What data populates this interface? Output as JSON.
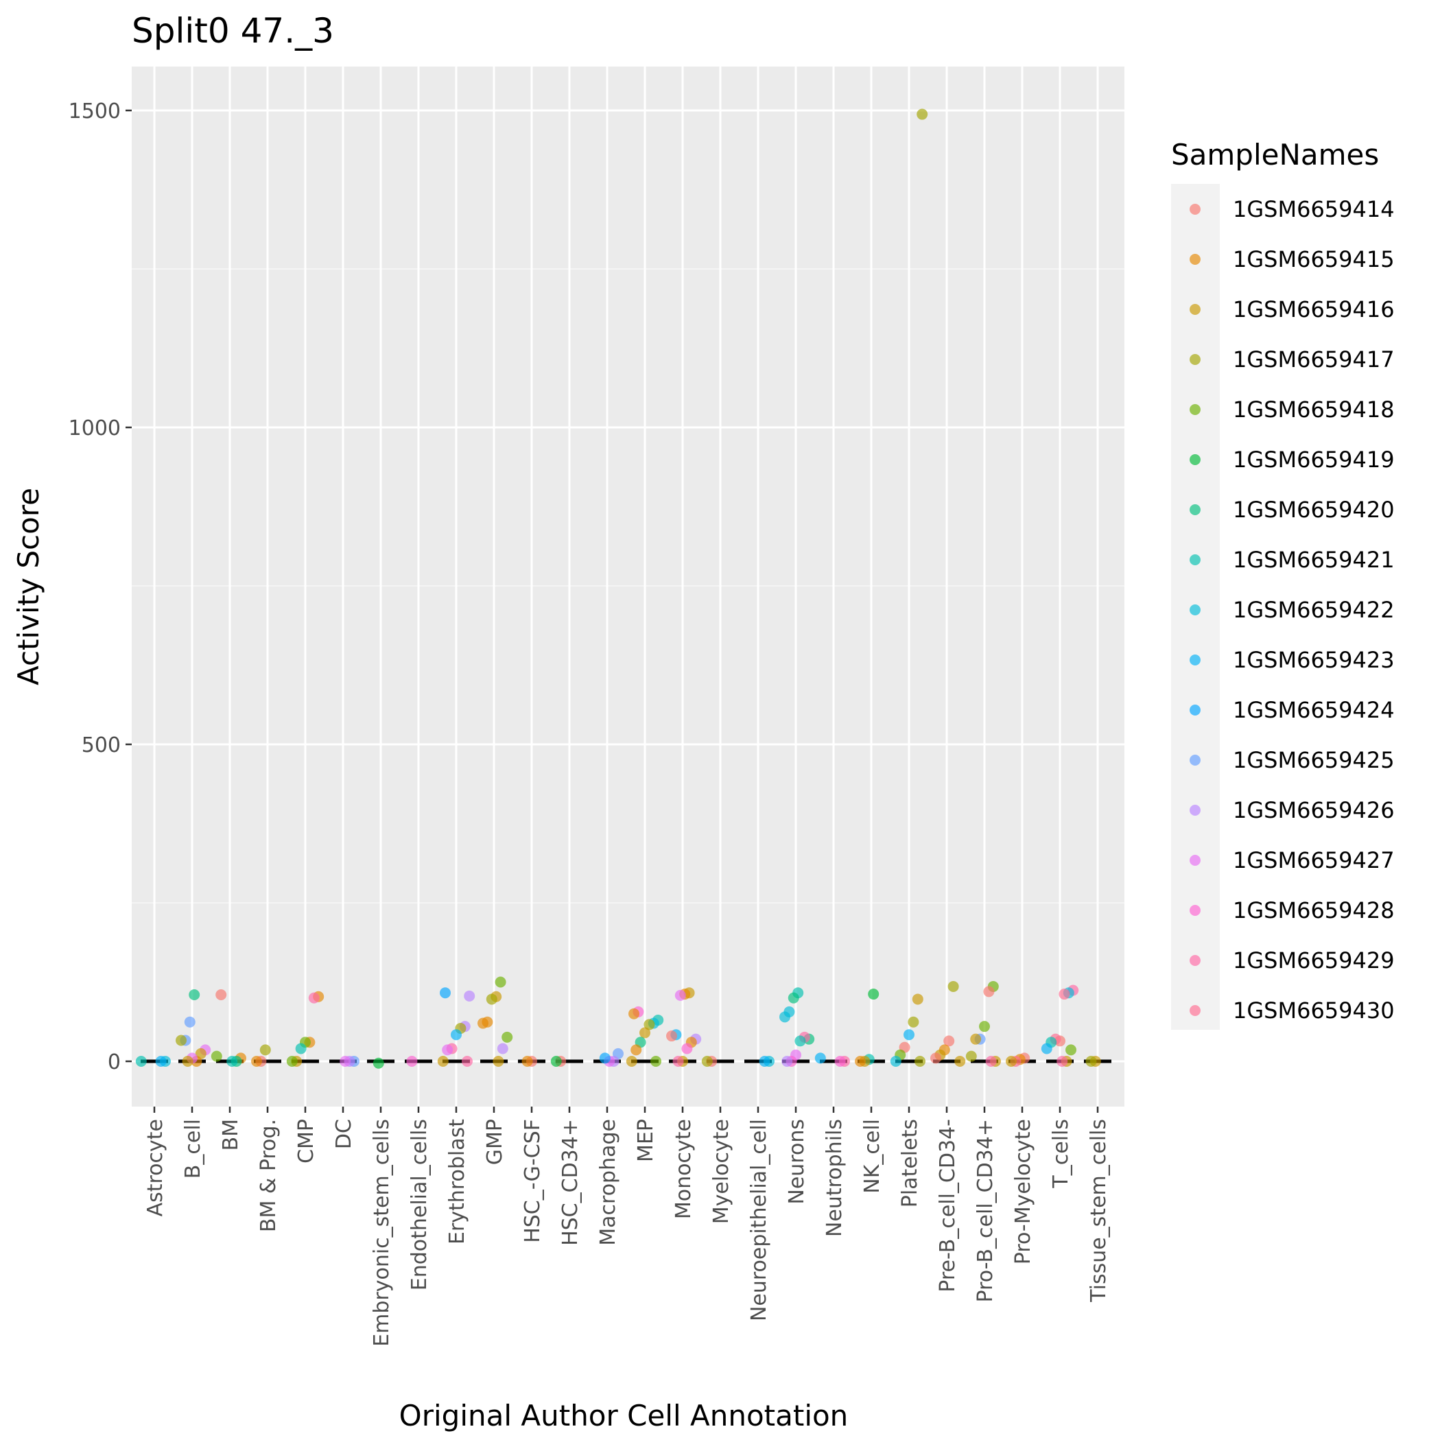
{
  "chart_data": {
    "type": "scatter",
    "title": "Split0 47._3",
    "xlabel": "Original Author Cell Annotation",
    "ylabel": "Activity Score",
    "ylim": [
      -75,
      1505
    ],
    "yticks": [
      0,
      500,
      1000,
      1500
    ],
    "grid": true,
    "legend_title": "SampleNames",
    "legend_position": "right",
    "categories": [
      "Astrocyte",
      "B_cell",
      "BM",
      "BM & Prog.",
      "CMP",
      "DC",
      "Embryonic_stem_cells",
      "Endothelial_cells",
      "Erythroblast",
      "GMP",
      "HSC_-G-CSF",
      "HSC_CD34+",
      "Macrophage",
      "MEP",
      "Monocyte",
      "Myelocyte",
      "Neuroepithelial_cell",
      "Neurons",
      "Neutrophils",
      "NK_cell",
      "Platelets",
      "Pre-B_cell_CD34-",
      "Pro-B_cell_CD34+",
      "Pro-Myelocyte",
      "T_cells",
      "Tissue_stem_cells"
    ],
    "series_names": [
      "1GSM6659414",
      "1GSM6659415",
      "1GSM6659416",
      "1GSM6659417",
      "1GSM6659418",
      "1GSM6659419",
      "1GSM6659420",
      "1GSM6659421",
      "1GSM6659422",
      "1GSM6659423",
      "1GSM6659424",
      "1GSM6659425",
      "1GSM6659426",
      "1GSM6659427",
      "1GSM6659428",
      "1GSM6659429",
      "1GSM6659430"
    ],
    "series_colors": [
      "#F8766D",
      "#E58700",
      "#C99800",
      "#A3A500",
      "#6BB100",
      "#00BA38",
      "#00BF7D",
      "#00C0AF",
      "#00BCD8",
      "#00B0F6",
      "#00A5FF",
      "#619CFF",
      "#B983FF",
      "#E76BF3",
      "#FD61D1",
      "#FF67A4",
      "#FF6C91"
    ],
    "points": [
      {
        "c": "Astrocyte",
        "s": 7,
        "y": 0
      },
      {
        "c": "Astrocyte",
        "s": 8,
        "y": 0
      },
      {
        "c": "Astrocyte",
        "s": 9,
        "y": 0
      },
      {
        "c": "B_cell",
        "s": 6,
        "y": 105
      },
      {
        "c": "B_cell",
        "s": 11,
        "y": 62
      },
      {
        "c": "B_cell",
        "s": 11,
        "y": 33
      },
      {
        "c": "B_cell",
        "s": 3,
        "y": 33
      },
      {
        "c": "B_cell",
        "s": 13,
        "y": 18
      },
      {
        "c": "B_cell",
        "s": 2,
        "y": 12
      },
      {
        "c": "B_cell",
        "s": 1,
        "y": 0
      },
      {
        "c": "B_cell",
        "s": 13,
        "y": 5
      },
      {
        "c": "B_cell",
        "s": 2,
        "y": 0
      },
      {
        "c": "BM",
        "s": 0,
        "y": 105
      },
      {
        "c": "BM",
        "s": 4,
        "y": 8
      },
      {
        "c": "BM",
        "s": 1,
        "y": 5
      },
      {
        "c": "BM",
        "s": 6,
        "y": 0
      },
      {
        "c": "BM",
        "s": 7,
        "y": 0
      },
      {
        "c": "BM & Prog.",
        "s": 3,
        "y": 18
      },
      {
        "c": "BM & Prog.",
        "s": 0,
        "y": 0
      },
      {
        "c": "BM & Prog.",
        "s": 1,
        "y": 0
      },
      {
        "c": "CMP",
        "s": 1,
        "y": 102
      },
      {
        "c": "CMP",
        "s": 15,
        "y": 100
      },
      {
        "c": "CMP",
        "s": 1,
        "y": 30
      },
      {
        "c": "CMP",
        "s": 4,
        "y": 30
      },
      {
        "c": "CMP",
        "s": 7,
        "y": 20
      },
      {
        "c": "CMP",
        "s": 2,
        "y": 0
      },
      {
        "c": "CMP",
        "s": 4,
        "y": 0
      },
      {
        "c": "DC",
        "s": 11,
        "y": 0
      },
      {
        "c": "DC",
        "s": 12,
        "y": 0
      },
      {
        "c": "DC",
        "s": 13,
        "y": 0
      },
      {
        "c": "Embryonic_stem_cells",
        "s": 5,
        "y": -3
      },
      {
        "c": "Endothelial_cells",
        "s": 14,
        "y": 0
      },
      {
        "c": "Erythroblast",
        "s": 10,
        "y": 108
      },
      {
        "c": "Erythroblast",
        "s": 12,
        "y": 103
      },
      {
        "c": "Erythroblast",
        "s": 12,
        "y": 55
      },
      {
        "c": "Erythroblast",
        "s": 3,
        "y": 52
      },
      {
        "c": "Erythroblast",
        "s": 9,
        "y": 42
      },
      {
        "c": "Erythroblast",
        "s": 15,
        "y": 20
      },
      {
        "c": "Erythroblast",
        "s": 13,
        "y": 18
      },
      {
        "c": "Erythroblast",
        "s": 2,
        "y": 0
      },
      {
        "c": "Erythroblast",
        "s": 15,
        "y": 0
      },
      {
        "c": "GMP",
        "s": 4,
        "y": 125
      },
      {
        "c": "GMP",
        "s": 2,
        "y": 102
      },
      {
        "c": "GMP",
        "s": 3,
        "y": 98
      },
      {
        "c": "GMP",
        "s": 1,
        "y": 62
      },
      {
        "c": "GMP",
        "s": 1,
        "y": 60
      },
      {
        "c": "GMP",
        "s": 4,
        "y": 38
      },
      {
        "c": "GMP",
        "s": 12,
        "y": 20
      },
      {
        "c": "GMP",
        "s": 2,
        "y": 0
      },
      {
        "c": "HSC_-G-CSF",
        "s": 0,
        "y": 0
      },
      {
        "c": "HSC_-G-CSF",
        "s": 1,
        "y": 0
      },
      {
        "c": "HSC_CD34+",
        "s": 0,
        "y": 0
      },
      {
        "c": "HSC_CD34+",
        "s": 5,
        "y": 0
      },
      {
        "c": "Macrophage",
        "s": 11,
        "y": 12
      },
      {
        "c": "Macrophage",
        "s": 12,
        "y": 0
      },
      {
        "c": "Macrophage",
        "s": 13,
        "y": 0
      },
      {
        "c": "Macrophage",
        "s": 10,
        "y": 5
      },
      {
        "c": "MEP",
        "s": 14,
        "y": 78
      },
      {
        "c": "MEP",
        "s": 1,
        "y": 75
      },
      {
        "c": "MEP",
        "s": 7,
        "y": 65
      },
      {
        "c": "MEP",
        "s": 8,
        "y": 60
      },
      {
        "c": "MEP",
        "s": 3,
        "y": 58
      },
      {
        "c": "MEP",
        "s": 2,
        "y": 45
      },
      {
        "c": "MEP",
        "s": 6,
        "y": 30
      },
      {
        "c": "MEP",
        "s": 1,
        "y": 18
      },
      {
        "c": "MEP",
        "s": 2,
        "y": 0
      },
      {
        "c": "MEP",
        "s": 4,
        "y": 0
      },
      {
        "c": "Monocyte",
        "s": 2,
        "y": 108
      },
      {
        "c": "Monocyte",
        "s": 1,
        "y": 106
      },
      {
        "c": "Monocyte",
        "s": 13,
        "y": 104
      },
      {
        "c": "Monocyte",
        "s": 9,
        "y": 42
      },
      {
        "c": "Monocyte",
        "s": 0,
        "y": 40
      },
      {
        "c": "Monocyte",
        "s": 12,
        "y": 35
      },
      {
        "c": "Monocyte",
        "s": 1,
        "y": 30
      },
      {
        "c": "Monocyte",
        "s": 14,
        "y": 20
      },
      {
        "c": "Monocyte",
        "s": 2,
        "y": 0
      },
      {
        "c": "Monocyte",
        "s": 15,
        "y": 0
      },
      {
        "c": "Myelocyte",
        "s": 0,
        "y": 0
      },
      {
        "c": "Myelocyte",
        "s": 3,
        "y": 0
      },
      {
        "c": "Neuroepithelial_cell",
        "s": 8,
        "y": 0
      },
      {
        "c": "Neuroepithelial_cell",
        "s": 9,
        "y": 0
      },
      {
        "c": "Neurons",
        "s": 7,
        "y": 108
      },
      {
        "c": "Neurons",
        "s": 6,
        "y": 100
      },
      {
        "c": "Neurons",
        "s": 8,
        "y": 78
      },
      {
        "c": "Neurons",
        "s": 8,
        "y": 70
      },
      {
        "c": "Neurons",
        "s": 6,
        "y": 35
      },
      {
        "c": "Neurons",
        "s": 15,
        "y": 38
      },
      {
        "c": "Neurons",
        "s": 7,
        "y": 32
      },
      {
        "c": "Neurons",
        "s": 13,
        "y": 10
      },
      {
        "c": "Neurons",
        "s": 14,
        "y": 0
      },
      {
        "c": "Neurons",
        "s": 12,
        "y": 0
      },
      {
        "c": "Neutrophils",
        "s": 9,
        "y": 5
      },
      {
        "c": "Neutrophils",
        "s": 15,
        "y": 0
      },
      {
        "c": "Neutrophils",
        "s": 14,
        "y": 0
      },
      {
        "c": "NK_cell",
        "s": 5,
        "y": 106
      },
      {
        "c": "NK_cell",
        "s": 7,
        "y": 3
      },
      {
        "c": "NK_cell",
        "s": 2,
        "y": 0
      },
      {
        "c": "NK_cell",
        "s": 1,
        "y": 0
      },
      {
        "c": "Platelets",
        "s": 3,
        "y": 1494
      },
      {
        "c": "Platelets",
        "s": 2,
        "y": 98
      },
      {
        "c": "Platelets",
        "s": 3,
        "y": 62
      },
      {
        "c": "Platelets",
        "s": 9,
        "y": 42
      },
      {
        "c": "Platelets",
        "s": 0,
        "y": 22
      },
      {
        "c": "Platelets",
        "s": 4,
        "y": 10
      },
      {
        "c": "Platelets",
        "s": 8,
        "y": 0
      },
      {
        "c": "Platelets",
        "s": 3,
        "y": 0
      },
      {
        "c": "Pre-B_cell_CD34-",
        "s": 3,
        "y": 118
      },
      {
        "c": "Pre-B_cell_CD34-",
        "s": 0,
        "y": 32
      },
      {
        "c": "Pre-B_cell_CD34-",
        "s": 1,
        "y": 18
      },
      {
        "c": "Pre-B_cell_CD34-",
        "s": 2,
        "y": 10
      },
      {
        "c": "Pre-B_cell_CD34-",
        "s": 0,
        "y": 5
      },
      {
        "c": "Pre-B_cell_CD34-",
        "s": 2,
        "y": 0
      },
      {
        "c": "Pro-B_cell_CD34+",
        "s": 4,
        "y": 118
      },
      {
        "c": "Pro-B_cell_CD34+",
        "s": 0,
        "y": 110
      },
      {
        "c": "Pro-B_cell_CD34+",
        "s": 4,
        "y": 55
      },
      {
        "c": "Pro-B_cell_CD34+",
        "s": 11,
        "y": 35
      },
      {
        "c": "Pro-B_cell_CD34+",
        "s": 2,
        "y": 35
      },
      {
        "c": "Pro-B_cell_CD34+",
        "s": 3,
        "y": 8
      },
      {
        "c": "Pro-B_cell_CD34+",
        "s": 2,
        "y": 0
      },
      {
        "c": "Pro-B_cell_CD34+",
        "s": 15,
        "y": 0
      },
      {
        "c": "Pro-Myelocyte",
        "s": 0,
        "y": 5
      },
      {
        "c": "Pro-Myelocyte",
        "s": 1,
        "y": 3
      },
      {
        "c": "Pro-Myelocyte",
        "s": 16,
        "y": 0
      },
      {
        "c": "Pro-Myelocyte",
        "s": 2,
        "y": 0
      },
      {
        "c": "T_cells",
        "s": 15,
        "y": 112
      },
      {
        "c": "T_cells",
        "s": 8,
        "y": 108
      },
      {
        "c": "T_cells",
        "s": 16,
        "y": 106
      },
      {
        "c": "T_cells",
        "s": 0,
        "y": 32
      },
      {
        "c": "T_cells",
        "s": 16,
        "y": 35
      },
      {
        "c": "T_cells",
        "s": 7,
        "y": 30
      },
      {
        "c": "T_cells",
        "s": 9,
        "y": 20
      },
      {
        "c": "T_cells",
        "s": 4,
        "y": 18
      },
      {
        "c": "T_cells",
        "s": 2,
        "y": 0
      },
      {
        "c": "T_cells",
        "s": 15,
        "y": 0
      },
      {
        "c": "Tissue_stem_cells",
        "s": 2,
        "y": 0
      },
      {
        "c": "Tissue_stem_cells",
        "s": 3,
        "y": 0
      }
    ]
  }
}
